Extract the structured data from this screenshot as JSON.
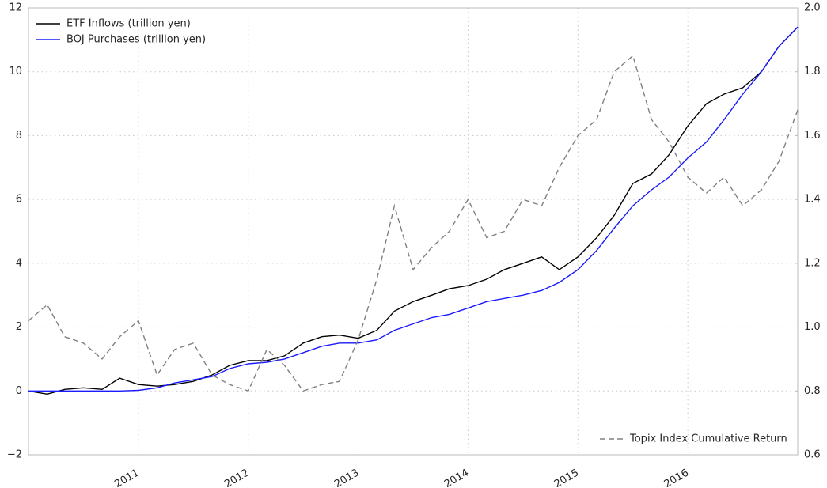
{
  "chart_data": {
    "type": "line",
    "x": [
      2010,
      2010.17,
      2010.33,
      2010.5,
      2010.67,
      2010.83,
      2011,
      2011.17,
      2011.33,
      2011.5,
      2011.67,
      2011.83,
      2012,
      2012.17,
      2012.33,
      2012.5,
      2012.67,
      2012.83,
      2013,
      2013.17,
      2013.33,
      2013.5,
      2013.67,
      2013.83,
      2014,
      2014.17,
      2014.33,
      2014.5,
      2014.67,
      2014.83,
      2015,
      2015.17,
      2015.33,
      2015.5,
      2015.67,
      2015.83,
      2016,
      2016.17,
      2016.33,
      2016.5,
      2016.67,
      2016.83,
      2017
    ],
    "series": [
      {
        "name": "ETF Inflows (trillion yen)",
        "color": "#000000",
        "linestyle": "solid",
        "values": [
          0,
          -0.1,
          0.05,
          0.1,
          0.05,
          0.4,
          0.2,
          0.15,
          0.2,
          0.3,
          0.5,
          0.8,
          0.95,
          0.95,
          1.1,
          1.5,
          1.7,
          1.75,
          1.65,
          1.9,
          2.5,
          2.8,
          3.0,
          3.2,
          3.3,
          3.5,
          3.8,
          4.0,
          4.2,
          3.8,
          4.2,
          4.8,
          5.5,
          6.5,
          6.8,
          7.4,
          8.3,
          9.0,
          9.3,
          9.5,
          10.0,
          10.8,
          11.4
        ]
      },
      {
        "name": "BOJ Purchases (trillion yen)",
        "color": "#1a1aff",
        "linestyle": "solid",
        "values": [
          0,
          0,
          0,
          0,
          0,
          0,
          0.02,
          0.1,
          0.25,
          0.35,
          0.45,
          0.7,
          0.85,
          0.9,
          1.0,
          1.2,
          1.4,
          1.5,
          1.5,
          1.6,
          1.9,
          2.1,
          2.3,
          2.4,
          2.6,
          2.8,
          2.9,
          3.0,
          3.15,
          3.4,
          3.8,
          4.4,
          5.1,
          5.8,
          6.3,
          6.7,
          7.3,
          7.8,
          8.5,
          9.3,
          10.0,
          10.8,
          11.4
        ]
      },
      {
        "name": "Topix Index Cumulative Return",
        "color": "#808080",
        "linestyle": "dashed",
        "axis": "y2",
        "values": [
          1.02,
          1.07,
          0.97,
          0.95,
          0.9,
          0.97,
          1.02,
          0.85,
          0.93,
          0.95,
          0.85,
          0.82,
          0.8,
          0.93,
          0.88,
          0.8,
          0.82,
          0.83,
          0.96,
          1.15,
          1.38,
          1.18,
          1.25,
          1.3,
          1.4,
          1.28,
          1.3,
          1.4,
          1.38,
          1.5,
          1.6,
          1.65,
          1.8,
          1.85,
          1.65,
          1.58,
          1.47,
          1.42,
          1.47,
          1.38,
          1.43,
          1.52,
          1.68
        ]
      }
    ],
    "xlim": [
      2010,
      2017
    ],
    "xticks": [
      2011,
      2012,
      2013,
      2014,
      2015,
      2016
    ],
    "ylim": [
      -2,
      12
    ],
    "yticks": [
      {
        "value": -2,
        "label": "−2"
      },
      0,
      2,
      4,
      6,
      8,
      10,
      12
    ],
    "y2lim": [
      0.6,
      2.0
    ],
    "y2ticks": [
      0.6,
      0.8,
      {
        "value": 1,
        "label": "1.0"
      },
      1.2,
      1.4,
      1.6,
      1.8,
      {
        "value": 2,
        "label": "2.0"
      }
    ],
    "grid": true,
    "legend_loc": "upper left",
    "y2_legend_loc": "lower right"
  }
}
